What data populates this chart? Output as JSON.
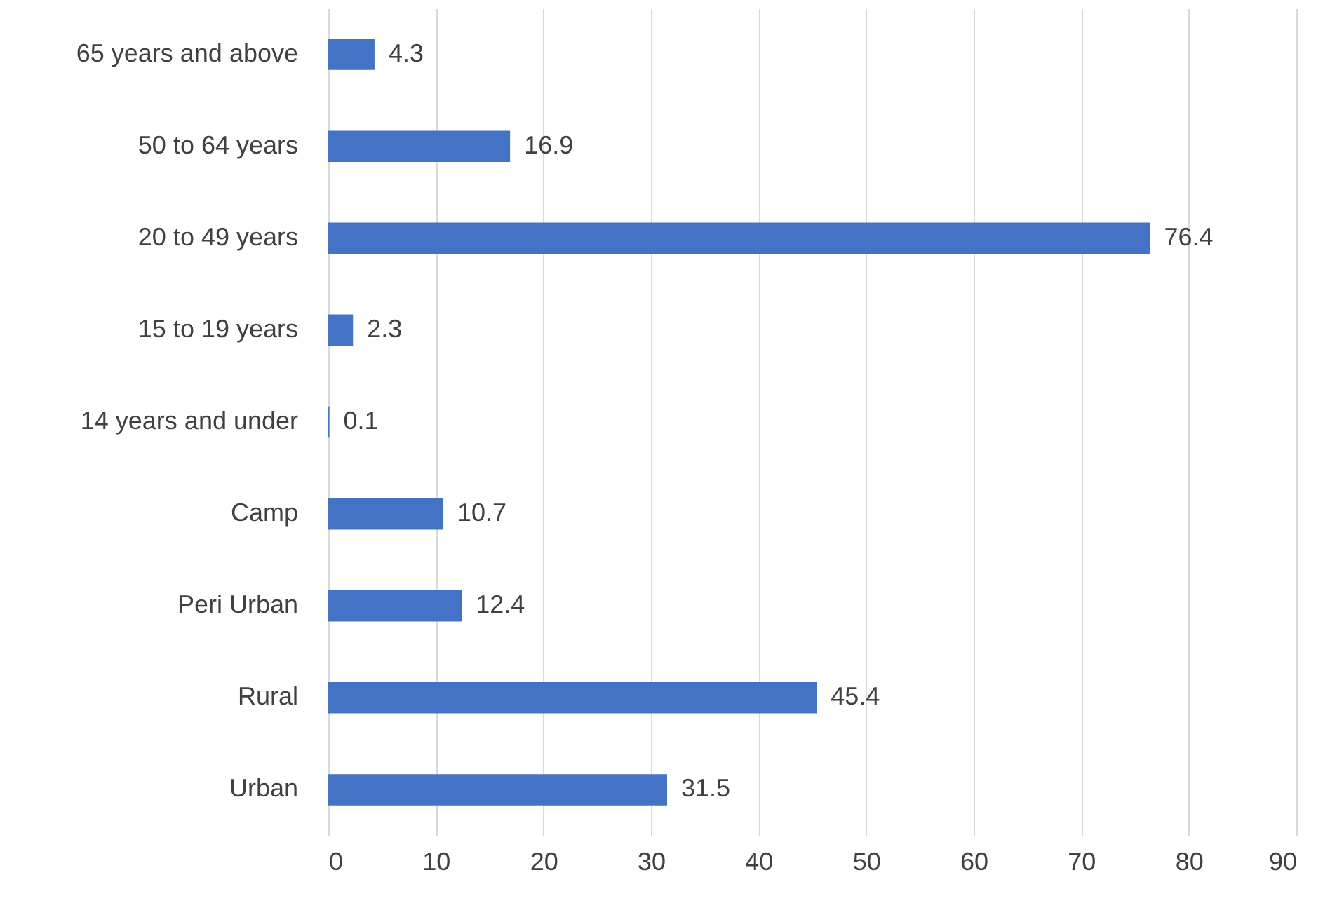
{
  "chart_data": {
    "type": "bar",
    "orientation": "horizontal",
    "categories": [
      "65 years and above",
      "50 to 64 years",
      "20 to 49 years",
      "15 to 19 years",
      "14 years and under",
      "Camp",
      "Peri Urban",
      "Rural",
      "Urban"
    ],
    "values": [
      4.3,
      16.9,
      76.4,
      2.3,
      0.1,
      10.7,
      12.4,
      45.4,
      31.5
    ],
    "color": "#4472c4",
    "xlim": [
      0,
      90
    ],
    "xticks": [
      0,
      10,
      20,
      30,
      40,
      50,
      60,
      70,
      80,
      90
    ],
    "grid": "x",
    "data_labels": true
  }
}
